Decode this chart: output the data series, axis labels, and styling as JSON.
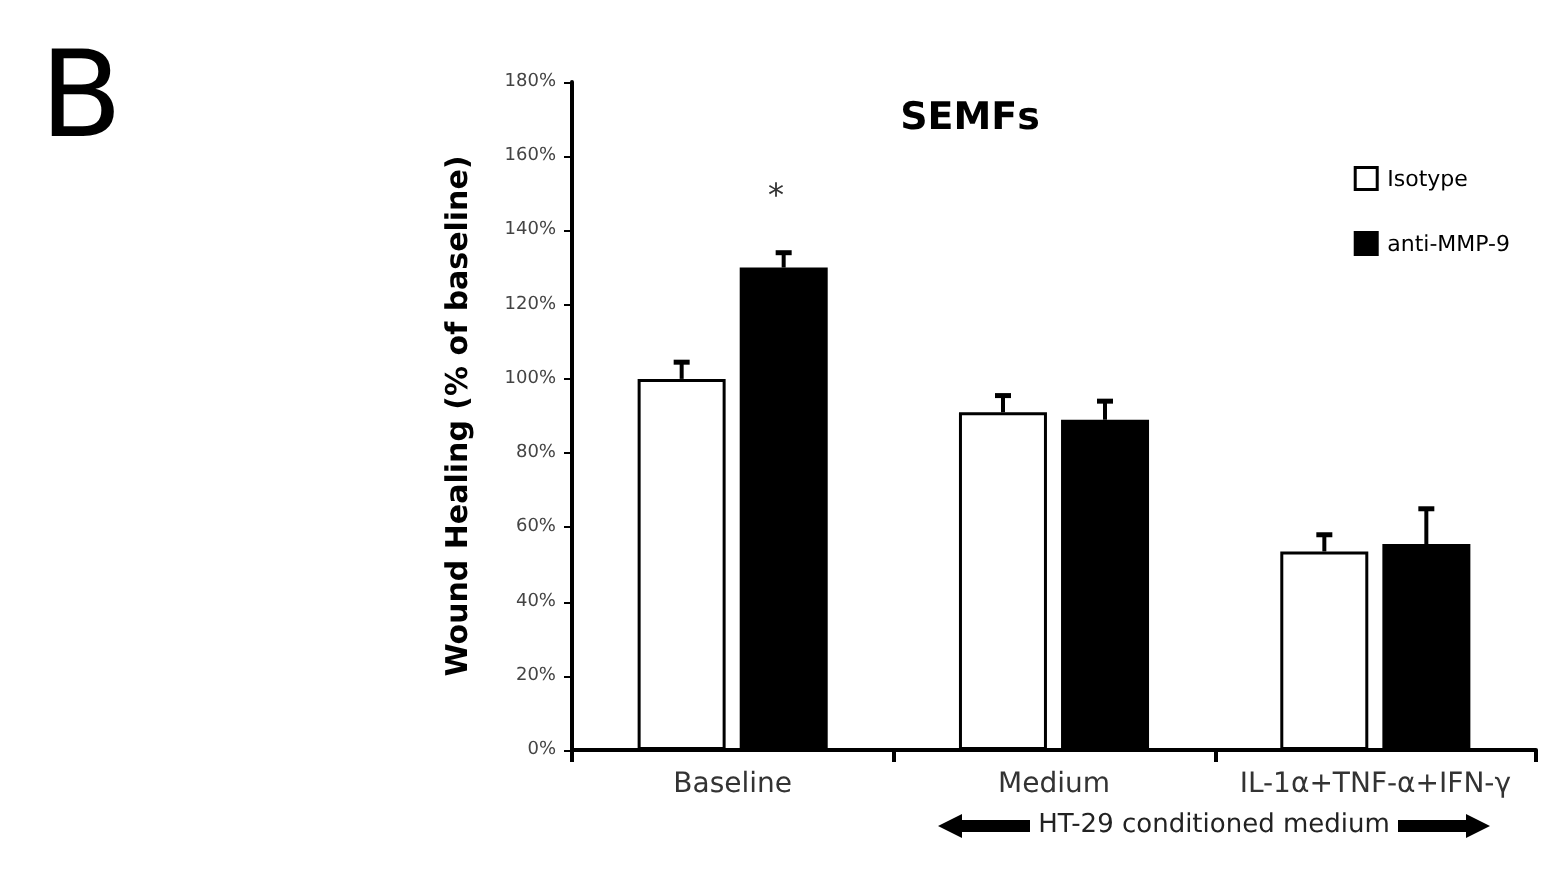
{
  "chart_data": {
    "type": "bar",
    "title": "SEMFs",
    "ylabel": "Wound Healing (% of baseline)",
    "categories": [
      "Baseline",
      "Medium",
      "IL-1α+TNF-α+IFN-γ"
    ],
    "series": [
      {
        "name": "Isotype",
        "color": "#ffffff",
        "values": [
          100,
          91,
          53.5
        ],
        "errors": [
          [
            100,
            104.5
          ],
          [
            91,
            95.5
          ],
          [
            53.5,
            58
          ]
        ]
      },
      {
        "name": "anti-MMP-9",
        "color": "#000000",
        "values": [
          130,
          89,
          55.5
        ],
        "errors": [
          [
            130,
            134
          ],
          [
            89,
            94
          ],
          [
            55.5,
            65
          ]
        ]
      }
    ],
    "ylim": [
      0,
      180
    ],
    "yticks": [
      {
        "value": 0,
        "label": "0%"
      },
      {
        "value": 20,
        "label": "20%"
      },
      {
        "value": 40,
        "label": "40%"
      },
      {
        "value": 60,
        "label": "60%"
      },
      {
        "value": 80,
        "label": "80%"
      },
      {
        "value": 100,
        "label": "100%"
      },
      {
        "value": 120,
        "label": "120%"
      },
      {
        "value": 140,
        "label": "140%"
      },
      {
        "value": 160,
        "label": "160%"
      },
      {
        "value": 180,
        "label": "180%"
      }
    ],
    "grid": false,
    "legend": "top right",
    "annotations": [
      "B",
      "*",
      "HT-29 conditioned medium"
    ]
  }
}
